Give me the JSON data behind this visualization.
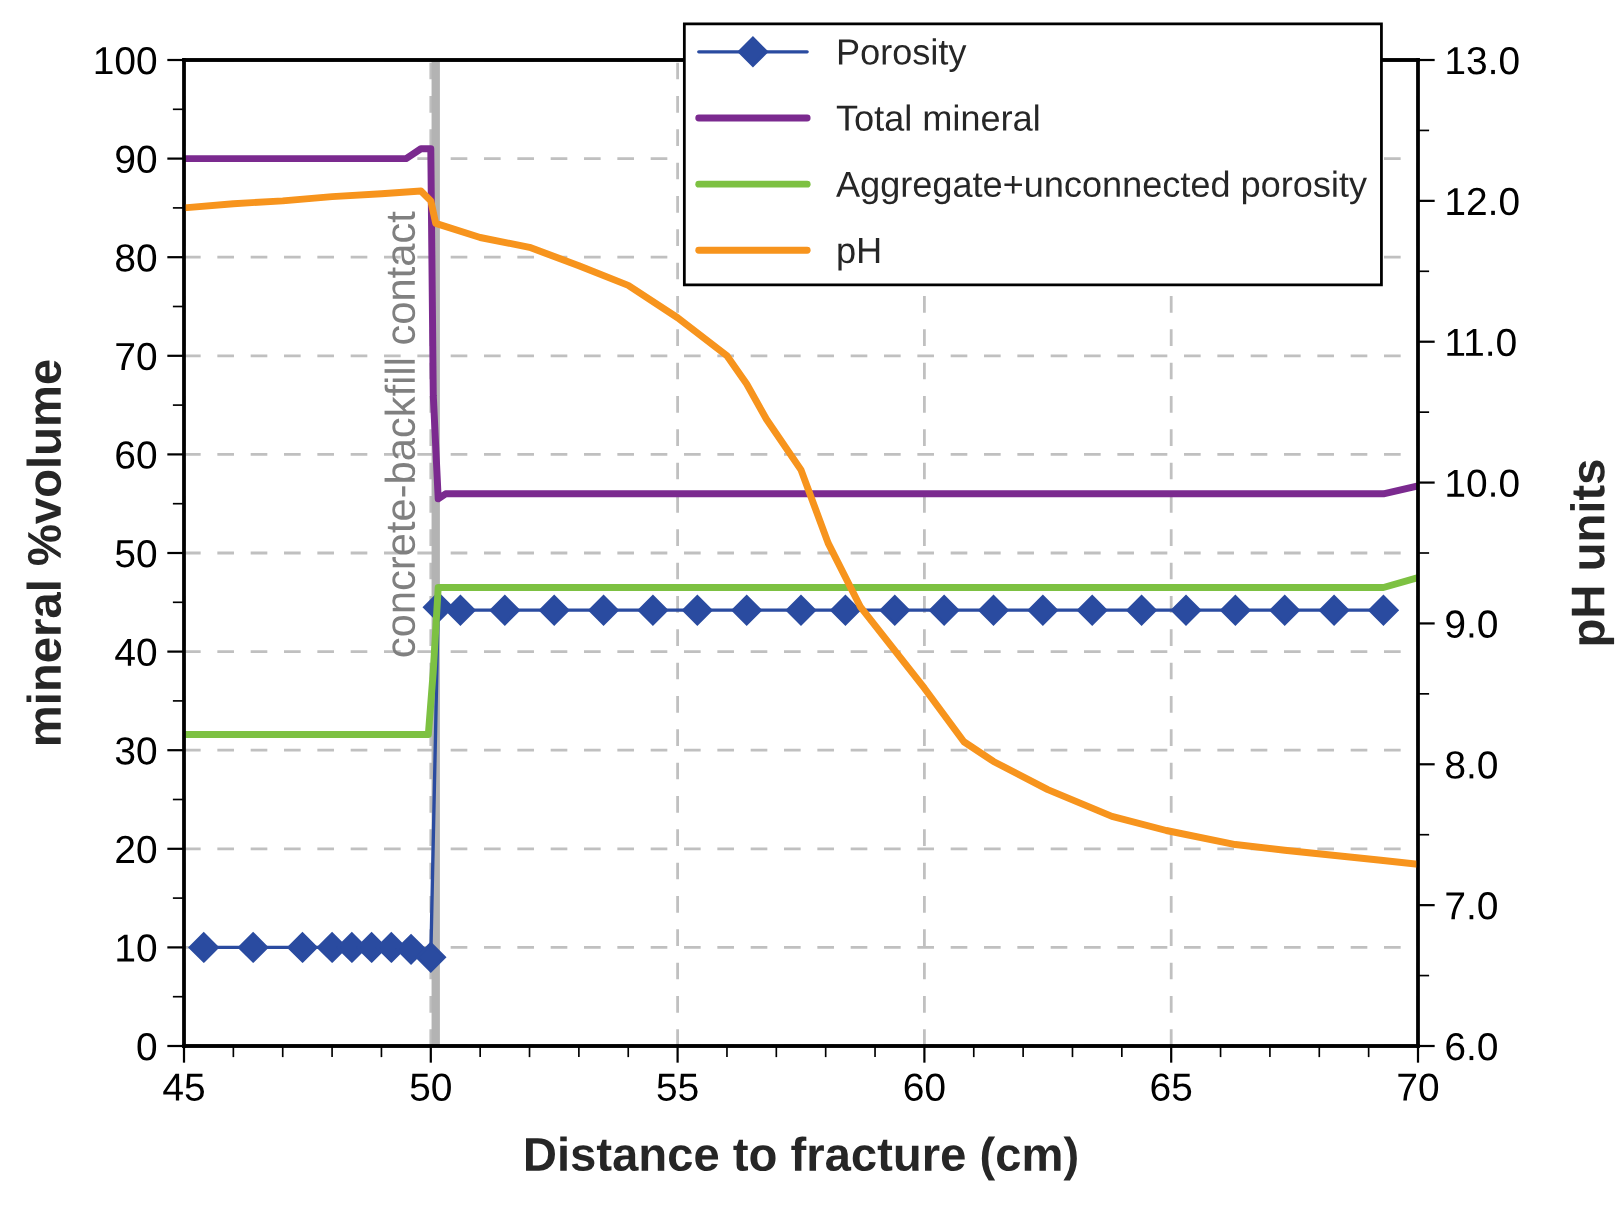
{
  "chart_data": {
    "type": "line",
    "xlabel": "Distance to fracture (cm)",
    "ylabel": "mineral %volume",
    "y2label": "pH units",
    "xlim": [
      45,
      70
    ],
    "xticks": [
      45,
      50,
      55,
      60,
      65,
      70
    ],
    "ylim": [
      0,
      100
    ],
    "yticks": [
      0,
      10,
      20,
      30,
      40,
      50,
      60,
      70,
      80,
      90,
      100
    ],
    "y2lim": [
      6,
      13
    ],
    "y2ticks": [
      {
        "value": 6,
        "label": "6.0"
      },
      {
        "value": 7,
        "label": "7.0"
      },
      {
        "value": 8,
        "label": "8.0"
      },
      {
        "value": 9,
        "label": "9.0"
      },
      {
        "value": 10,
        "label": "10.0"
      },
      {
        "value": 11,
        "label": "11.0"
      },
      {
        "value": 12,
        "label": "12.0"
      },
      {
        "value": 13,
        "label": "13.0"
      }
    ],
    "grid": true,
    "legend": "top right",
    "ref_lines": [
      {
        "axis": "x",
        "value": 50.1,
        "label": "concrete-backfill contact",
        "color": "#b3b3b3",
        "line_style": "solid"
      }
    ],
    "series": [
      {
        "name": "Porosity",
        "color": "#2a4ba0",
        "marker": "diamond",
        "x": [
          45.4,
          46.4,
          47.4,
          48.0,
          48.4,
          48.8,
          49.2,
          49.6,
          50.0,
          50.15,
          50.6,
          51.5,
          52.5,
          53.5,
          54.5,
          55.4,
          56.4,
          57.5,
          58.4,
          59.4,
          60.4,
          61.4,
          62.4,
          63.4,
          64.4,
          65.3,
          66.3,
          67.3,
          68.3,
          69.3
        ],
        "values": [
          10,
          10,
          10,
          10,
          10,
          10,
          10,
          9.8,
          9,
          44.5,
          44.2,
          44.2,
          44.2,
          44.2,
          44.2,
          44.2,
          44.2,
          44.2,
          44.2,
          44.2,
          44.2,
          44.2,
          44.2,
          44.2,
          44.2,
          44.2,
          44.2,
          44.2,
          44.2,
          44.2
        ]
      },
      {
        "name": "Total mineral",
        "color": "#7b2a8f",
        "marker": "none",
        "x": [
          45,
          49.5,
          49.8,
          50.0,
          50.05,
          50.15,
          50.3,
          69.3,
          70
        ],
        "values": [
          90,
          90,
          91,
          91,
          66,
          55.5,
          56,
          56,
          56.8
        ]
      },
      {
        "name": "Aggregate+unconnected porosity",
        "color": "#7dc142",
        "marker": "none",
        "x": [
          45,
          49.95,
          50.05,
          50.15,
          69.3,
          70
        ],
        "values": [
          31.6,
          31.6,
          38,
          46.5,
          46.5,
          47.5
        ]
      },
      {
        "name": "pH",
        "color": "#f7941d",
        "marker": "none",
        "axis": "y2",
        "x": [
          45,
          46,
          47,
          48,
          49,
          49.8,
          50.0,
          50.1,
          51,
          52,
          53,
          54,
          55,
          56,
          56.4,
          56.8,
          57.5,
          58.05,
          58.7,
          60,
          60.8,
          61.4,
          62.5,
          63.8,
          64.9,
          66.3,
          67.3,
          69.2,
          70
        ],
        "values": [
          11.95,
          11.98,
          12.0,
          12.03,
          12.05,
          12.07,
          12.0,
          11.84,
          11.74,
          11.67,
          11.54,
          11.4,
          11.17,
          10.9,
          10.7,
          10.45,
          10.09,
          9.57,
          9.12,
          8.54,
          8.16,
          8.02,
          7.82,
          7.63,
          7.53,
          7.43,
          7.39,
          7.32,
          7.29
        ]
      }
    ]
  }
}
